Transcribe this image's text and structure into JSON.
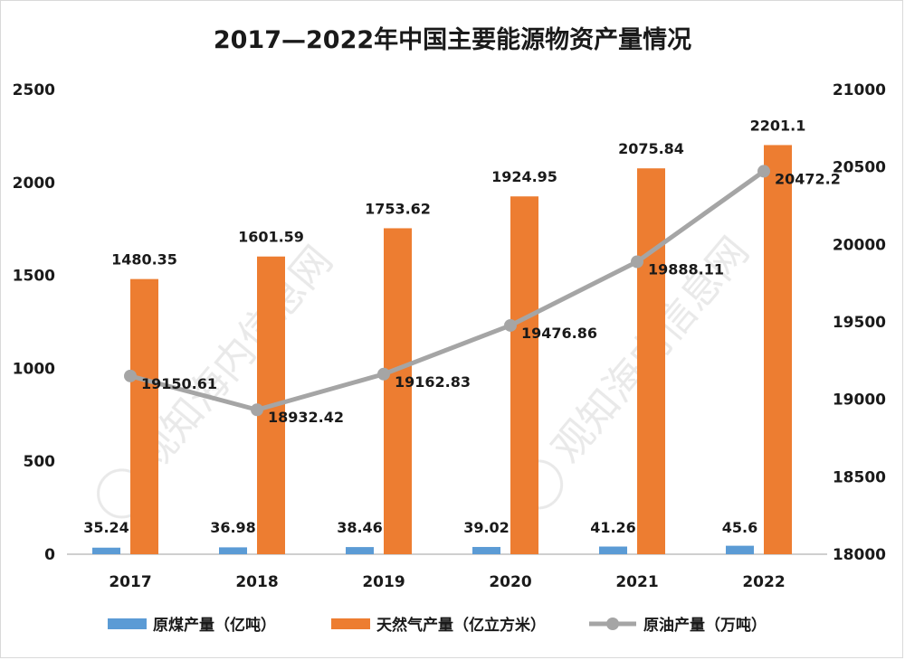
{
  "chart_data": {
    "type": "bar",
    "title": "2017—2022年中国主要能源物资产量情况",
    "categories": [
      "2017",
      "2018",
      "2019",
      "2020",
      "2021",
      "2022"
    ],
    "series": [
      {
        "name": "原煤产量（亿吨）",
        "kind": "bar",
        "axis": "left",
        "color": "#5b9bd5",
        "values": [
          35.24,
          36.98,
          38.46,
          39.02,
          41.26,
          45.6
        ],
        "labels": [
          "35.24",
          "36.98",
          "38.46",
          "39.02",
          "41.26",
          "45.6"
        ]
      },
      {
        "name": "天然气产量（亿立方米）",
        "kind": "bar",
        "axis": "left",
        "color": "#ed7d31",
        "values": [
          1480.35,
          1601.59,
          1753.62,
          1924.95,
          2075.84,
          2201.1
        ],
        "labels": [
          "1480.35",
          "1601.59",
          "1753.62",
          "1924.95",
          "2075.84",
          "2201.1"
        ]
      },
      {
        "name": "原油产量（万吨）",
        "kind": "line",
        "axis": "right",
        "color": "#a5a5a5",
        "values": [
          19150.61,
          18932.42,
          19162.83,
          19476.86,
          19888.11,
          20472.2
        ],
        "labels": [
          "19150.61",
          "18932.42",
          "19162.83",
          "19476.86",
          "19888.11",
          "20472.2"
        ]
      }
    ],
    "y_left": {
      "min": 0,
      "max": 2500,
      "ticks": [
        "0",
        "500",
        "1000",
        "1500",
        "2000",
        "2500"
      ]
    },
    "y_right": {
      "min": 18000,
      "max": 21000,
      "ticks": [
        "18000",
        "18500",
        "19000",
        "19500",
        "20000",
        "20500",
        "21000"
      ]
    },
    "grid": false,
    "legend_position": "bottom",
    "watermark": "观知海内信息网"
  }
}
